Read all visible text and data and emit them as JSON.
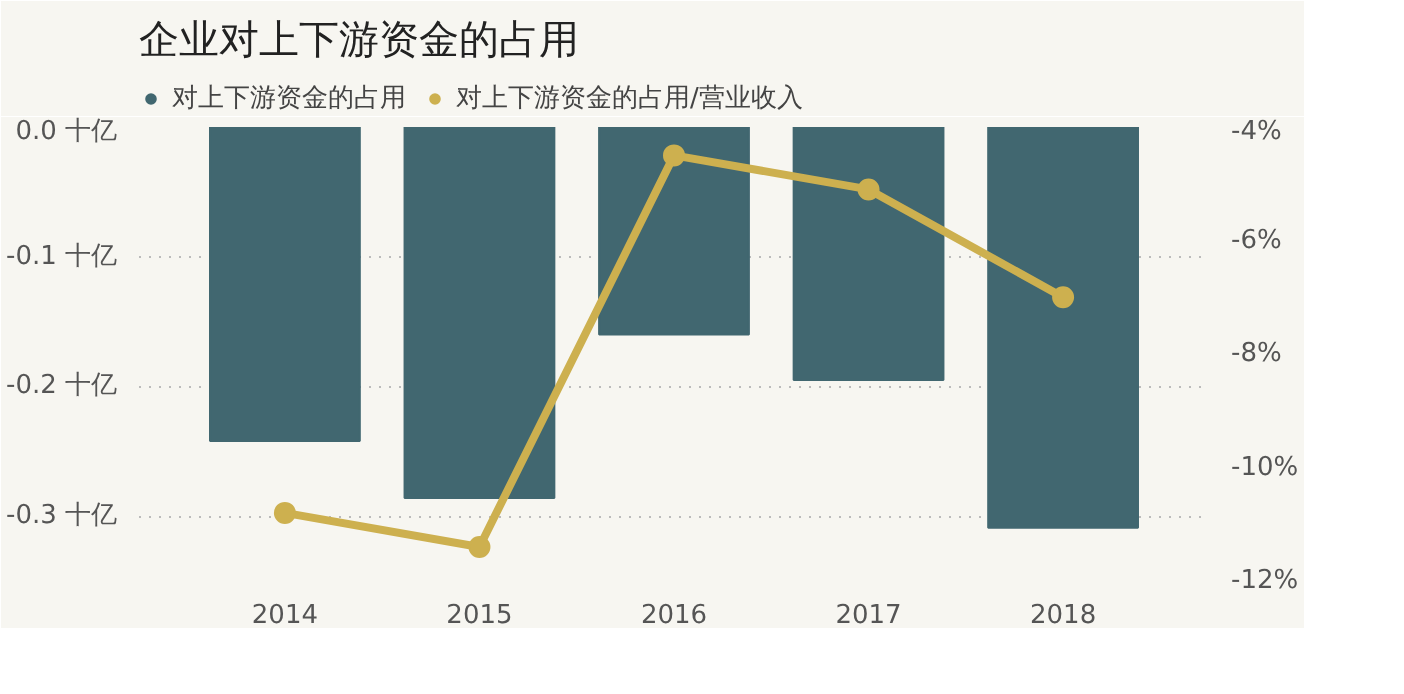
{
  "chart_data": {
    "type": "bar",
    "title": "企业对上下游资金的占用",
    "categories": [
      "2014",
      "2015",
      "2016",
      "2017",
      "2018"
    ],
    "series": [
      {
        "name": "对上下游资金的占用",
        "color": "#416770",
        "values": [
          -0.242,
          -0.286,
          -0.16,
          -0.195,
          -0.309
        ]
      },
      {
        "name": "对上下游资金的占用/营业收入",
        "type": "line",
        "axis": "y2",
        "color": "#cdb04f",
        "values": [
          -10.8,
          -11.4,
          -4.5,
          -5.1,
          -7.0
        ]
      }
    ],
    "ylim": [
      -0.35,
      0
    ],
    "yticks": [
      {
        "value": -0.3,
        "label": "-0.3 十亿"
      },
      {
        "value": -0.2,
        "label": "-0.2 十亿"
      },
      {
        "value": -0.1,
        "label": "-0.1 十亿"
      },
      {
        "value": 0,
        "label": "0.0 十亿"
      }
    ],
    "y2lim": [
      -12,
      -4
    ],
    "y2ticks": [
      {
        "value": -12,
        "label": "-12%"
      },
      {
        "value": -10,
        "label": "-10%"
      },
      {
        "value": -8,
        "label": "-8%"
      },
      {
        "value": -6,
        "label": "-6%"
      },
      {
        "value": -4,
        "label": "-4%"
      }
    ],
    "grid": "y",
    "legend": "top left",
    "marker": "circle",
    "line_style": "solid"
  }
}
